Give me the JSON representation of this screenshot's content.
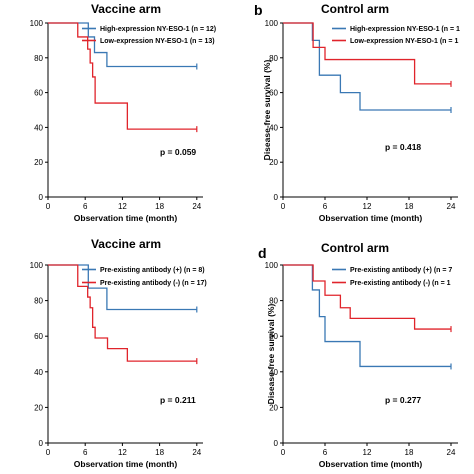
{
  "colors": {
    "blue": "#3a78b4",
    "red": "#e0242b"
  },
  "chart_data": [
    {
      "type": "line",
      "panel": "",
      "title": "Vaccine arm",
      "xlabel": "Observation time (month)",
      "ylabel": "",
      "xlim": [
        0,
        25
      ],
      "ylim": [
        0,
        100
      ],
      "xticks": [
        "0",
        "6",
        "12",
        "18",
        "24"
      ],
      "yticks": [
        "0",
        "20",
        "40",
        "60",
        "80",
        "100"
      ],
      "pvalue": "p = 0.059",
      "series": [
        {
          "name": "High-expression NY-ESO-1 (n = 12)",
          "color": "#3a78b4",
          "steps": [
            [
              0,
              100
            ],
            [
              6.5,
              100
            ],
            [
              6.5,
              92
            ],
            [
              7.5,
              92
            ],
            [
              7.5,
              83
            ],
            [
              9.5,
              83
            ],
            [
              9.5,
              75
            ],
            [
              24,
              75
            ]
          ]
        },
        {
          "name": "Low-expression NY-ESO-1 (n = 13)",
          "color": "#e0242b",
          "steps": [
            [
              0,
              100
            ],
            [
              4.8,
              100
            ],
            [
              4.8,
              92
            ],
            [
              6.4,
              92
            ],
            [
              6.4,
              85
            ],
            [
              6.8,
              85
            ],
            [
              6.8,
              77
            ],
            [
              7.2,
              77
            ],
            [
              7.2,
              69
            ],
            [
              7.6,
              69
            ],
            [
              7.6,
              54
            ],
            [
              12.8,
              54
            ],
            [
              12.8,
              39
            ],
            [
              24,
              39
            ]
          ]
        }
      ]
    },
    {
      "type": "line",
      "panel": "b",
      "title": "Control arm",
      "xlabel": "Observation time (month)",
      "ylabel": "Disease-free survival (%)",
      "xlim": [
        0,
        25
      ],
      "ylim": [
        0,
        100
      ],
      "xticks": [
        "0",
        "6",
        "12",
        "18",
        "24"
      ],
      "yticks": [
        "0",
        "20",
        "40",
        "60",
        "80",
        "100"
      ],
      "pvalue": "p = 0.418",
      "series": [
        {
          "name": "High-expression NY-ESO-1 (n = 1",
          "color": "#3a78b4",
          "steps": [
            [
              0,
              100
            ],
            [
              4.2,
              100
            ],
            [
              4.2,
              90
            ],
            [
              5.2,
              90
            ],
            [
              5.2,
              70
            ],
            [
              8.2,
              70
            ],
            [
              8.2,
              60
            ],
            [
              11,
              60
            ],
            [
              11,
              50
            ],
            [
              24,
              50
            ]
          ]
        },
        {
          "name": "Low-expression NY-ESO-1 (n = 1",
          "color": "#e0242b",
          "steps": [
            [
              0,
              100
            ],
            [
              4.3,
              100
            ],
            [
              4.3,
              86
            ],
            [
              6,
              86
            ],
            [
              6,
              79
            ],
            [
              18.8,
              79
            ],
            [
              18.8,
              65
            ],
            [
              24,
              65
            ]
          ]
        }
      ]
    },
    {
      "type": "line",
      "panel": "",
      "title": "Vaccine arm",
      "xlabel": "Observation time (month)",
      "ylabel": "",
      "xlim": [
        0,
        25
      ],
      "ylim": [
        0,
        100
      ],
      "xticks": [
        "0",
        "6",
        "12",
        "18",
        "24"
      ],
      "yticks": [
        "0",
        "20",
        "40",
        "60",
        "80",
        "100"
      ],
      "pvalue": "p = 0.211",
      "series": [
        {
          "name": "Pre-existing antibody (+) (n = 8)",
          "color": "#3a78b4",
          "steps": [
            [
              0,
              100
            ],
            [
              6.5,
              100
            ],
            [
              6.5,
              87
            ],
            [
              9.5,
              87
            ],
            [
              9.5,
              75
            ],
            [
              24,
              75
            ]
          ]
        },
        {
          "name": "Pre-existing antibody (-) (n = 17)",
          "color": "#e0242b",
          "steps": [
            [
              0,
              100
            ],
            [
              4.8,
              100
            ],
            [
              4.8,
              88
            ],
            [
              6.4,
              88
            ],
            [
              6.4,
              82
            ],
            [
              6.8,
              82
            ],
            [
              6.8,
              76
            ],
            [
              7.2,
              76
            ],
            [
              7.2,
              65
            ],
            [
              7.6,
              65
            ],
            [
              7.6,
              59
            ],
            [
              9.6,
              59
            ],
            [
              9.6,
              53
            ],
            [
              12.8,
              53
            ],
            [
              12.8,
              46
            ],
            [
              24,
              46
            ]
          ]
        }
      ]
    },
    {
      "type": "line",
      "panel": "d",
      "title": "Control arm",
      "xlabel": "Observation time (month)",
      "ylabel": "Disease-free survival (%)",
      "xlim": [
        0,
        25
      ],
      "ylim": [
        0,
        100
      ],
      "xticks": [
        "0",
        "6",
        "12",
        "18",
        "24"
      ],
      "yticks": [
        "0",
        "20",
        "40",
        "60",
        "80",
        "100"
      ],
      "pvalue": "p = 0.277",
      "series": [
        {
          "name": "Pre-existing antibody (+) (n = 7",
          "color": "#3a78b4",
          "steps": [
            [
              0,
              100
            ],
            [
              4.2,
              100
            ],
            [
              4.2,
              86
            ],
            [
              5.2,
              86
            ],
            [
              5.2,
              71
            ],
            [
              6,
              71
            ],
            [
              6,
              57
            ],
            [
              11,
              57
            ],
            [
              11,
              43
            ],
            [
              24,
              43
            ]
          ]
        },
        {
          "name": "Pre-existing antibody (-) (n = 1",
          "color": "#e0242b",
          "steps": [
            [
              0,
              100
            ],
            [
              4.3,
              100
            ],
            [
              4.3,
              91
            ],
            [
              6,
              91
            ],
            [
              6,
              83
            ],
            [
              8.2,
              83
            ],
            [
              8.2,
              76
            ],
            [
              9.6,
              76
            ],
            [
              9.6,
              70
            ],
            [
              18.8,
              70
            ],
            [
              18.8,
              64
            ],
            [
              24,
              64
            ]
          ]
        }
      ]
    }
  ]
}
